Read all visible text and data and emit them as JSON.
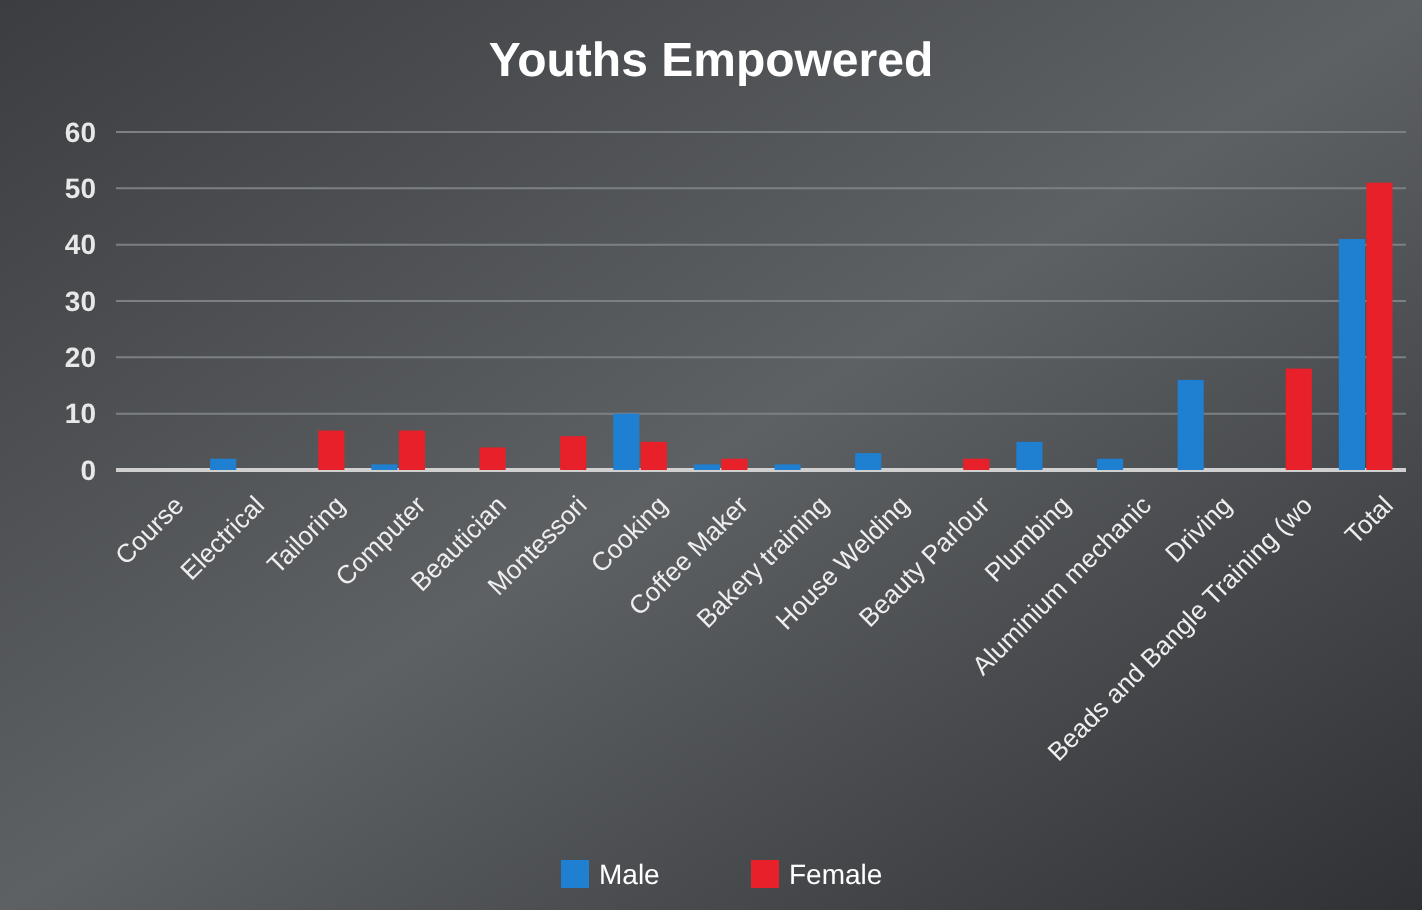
{
  "chart_data": {
    "type": "bar",
    "title": "Youths Empowered",
    "categories": [
      "Course",
      "Electrical",
      "Tailoring",
      "Computer",
      "Beautician",
      "Montessori",
      "Cooking",
      "Coffee Maker",
      "Bakery training",
      "House Welding",
      "Beauty Parlour",
      "Plumbing",
      "Aluminium mechanic",
      "Driving",
      "Beads and Bangle Training (wo",
      "Total"
    ],
    "series": [
      {
        "name": "Male",
        "color": "#1f7fd0",
        "values": [
          0,
          2,
          0,
          1,
          0,
          0,
          10,
          1,
          1,
          3,
          0,
          5,
          2,
          16,
          0,
          41
        ]
      },
      {
        "name": "Female",
        "color": "#e8202a",
        "values": [
          0,
          0,
          7,
          7,
          4,
          6,
          5,
          2,
          0,
          0,
          2,
          0,
          0,
          0,
          18,
          51
        ]
      }
    ],
    "ylim": [
      0,
      60
    ],
    "yticks": [
      0,
      10,
      20,
      30,
      40,
      50,
      60
    ],
    "grid": "y",
    "legend": "bottom"
  }
}
